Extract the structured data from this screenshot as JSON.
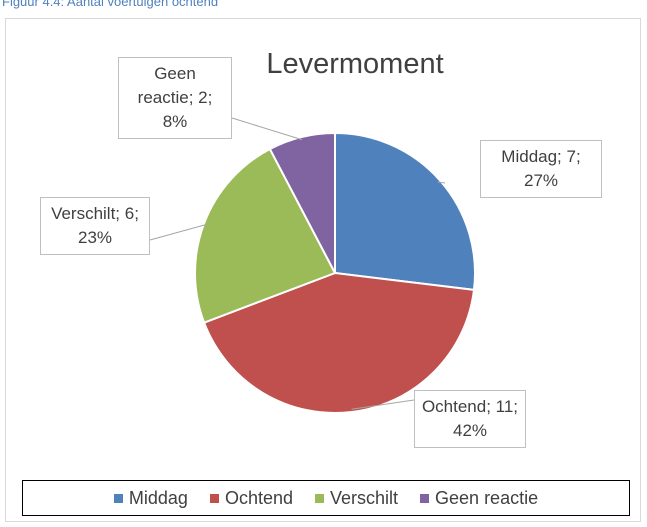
{
  "caption": "Figuur 4.4: Aantal voertuigen ochtend",
  "chart_data": {
    "type": "pie",
    "title": "Levermoment",
    "categories": [
      "Middag",
      "Ochtend",
      "Verschilt",
      "Geen reactie"
    ],
    "values": [
      7,
      11,
      6,
      2
    ],
    "value_labels": [
      "Middag; 7; 27%",
      "Ochtend; 11; 42%",
      "Verschilt; 6; 23%",
      "Geen reactie; 2; 8%"
    ],
    "colors": [
      "#4f81bd",
      "#c0504d",
      "#9bbb59",
      "#8064a2"
    ],
    "legend": "bottom"
  }
}
